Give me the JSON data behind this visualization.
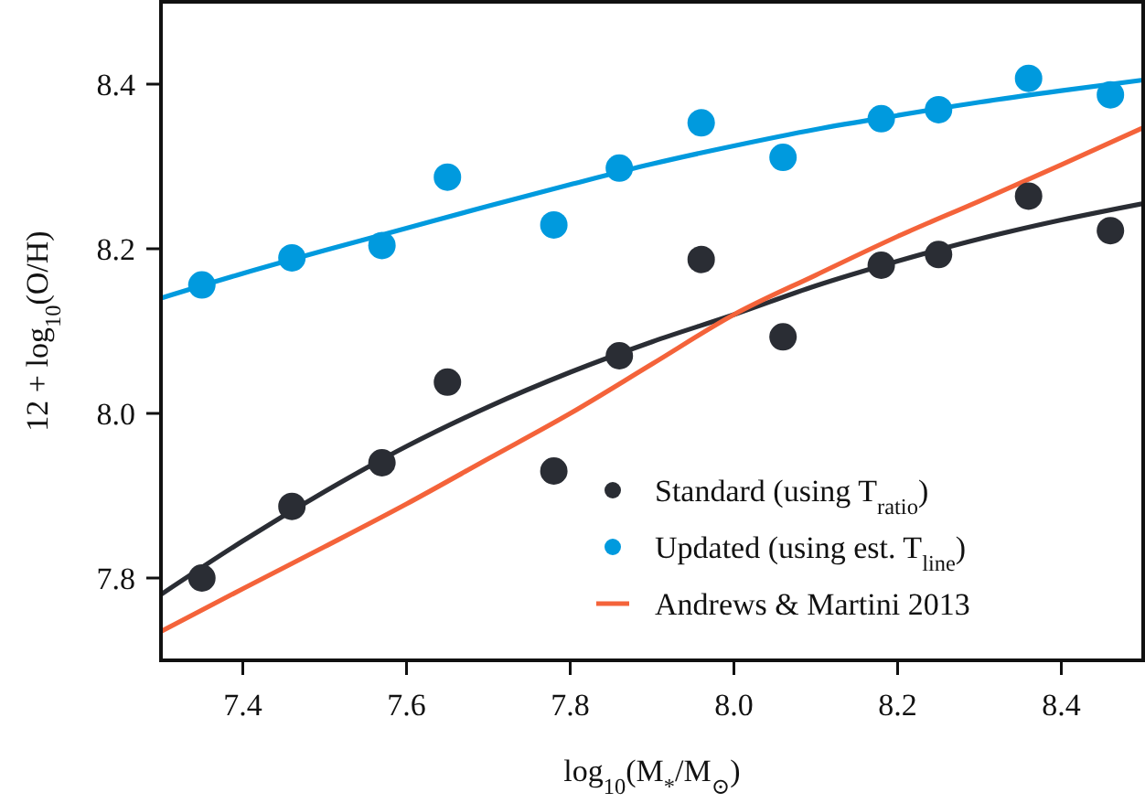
{
  "chart_data": {
    "type": "scatter",
    "xlabel": "log$_{10}$(M$_{*}$/M$_{⊙}$)",
    "ylabel": "12 + log$_{10}$(O/H)",
    "xlim": [
      7.3,
      8.5
    ],
    "ylim": [
      7.7,
      8.5
    ],
    "xticks": [
      7.4,
      7.6,
      7.8,
      {
        "value": 8,
        "label": "8.0"
      },
      8.2,
      8.4
    ],
    "yticks": [
      7.8,
      {
        "value": 8,
        "label": "8.0"
      },
      8.2,
      8.4
    ],
    "grid": false,
    "legend": "bottom right",
    "series": [
      {
        "name": "Standard (using T$_{ratio}$)",
        "marker": "circle",
        "color": "#2a2d34",
        "x": [
          7.35,
          7.46,
          7.57,
          7.65,
          7.78,
          7.86,
          7.96,
          8.06,
          8.18,
          8.25,
          8.36,
          8.46
        ],
        "values": [
          7.8,
          7.887,
          7.94,
          8.038,
          7.93,
          8.07,
          8.187,
          8.093,
          8.18,
          8.193,
          8.264,
          8.222
        ]
      },
      {
        "name": "Updated (using est. T$_{line}$)",
        "marker": "circle",
        "color": "#009ade",
        "x": [
          7.35,
          7.46,
          7.57,
          7.65,
          7.78,
          7.86,
          7.96,
          8.06,
          8.18,
          8.25,
          8.36,
          8.46
        ],
        "values": [
          8.156,
          8.189,
          8.204,
          8.287,
          8.229,
          8.298,
          8.353,
          8.311,
          8.358,
          8.369,
          8.407,
          8.387
        ]
      },
      {
        "type": "line",
        "marker": "none",
        "color": "#2a2d34",
        "x": [
          7.3,
          7.4,
          7.5,
          7.6,
          7.7,
          7.8,
          7.9,
          8.0,
          8.1,
          8.2,
          8.3,
          8.4,
          8.5
        ],
        "values": [
          7.78,
          7.845,
          7.905,
          7.96,
          8.008,
          8.05,
          8.087,
          8.12,
          8.155,
          8.185,
          8.212,
          8.235,
          8.255
        ]
      },
      {
        "type": "line",
        "marker": "none",
        "color": "#009ade",
        "x": [
          7.3,
          7.4,
          7.5,
          7.6,
          7.7,
          7.8,
          7.9,
          8.0,
          8.1,
          8.2,
          8.3,
          8.4,
          8.5
        ],
        "values": [
          8.14,
          8.17,
          8.198,
          8.225,
          8.252,
          8.278,
          8.303,
          8.325,
          8.345,
          8.362,
          8.378,
          8.392,
          8.405
        ]
      },
      {
        "name": "Andrews & Martini 2013",
        "type": "line",
        "marker": "none",
        "color": "#f4633a",
        "x": [
          7.3,
          7.4,
          7.5,
          7.6,
          7.7,
          7.8,
          7.9,
          8.0,
          8.1,
          8.2,
          8.3,
          8.4,
          8.5
        ],
        "values": [
          7.735,
          7.787,
          7.838,
          7.89,
          7.945,
          8.0,
          8.06,
          8.12,
          8.168,
          8.215,
          8.258,
          8.302,
          8.347
        ]
      }
    ]
  }
}
